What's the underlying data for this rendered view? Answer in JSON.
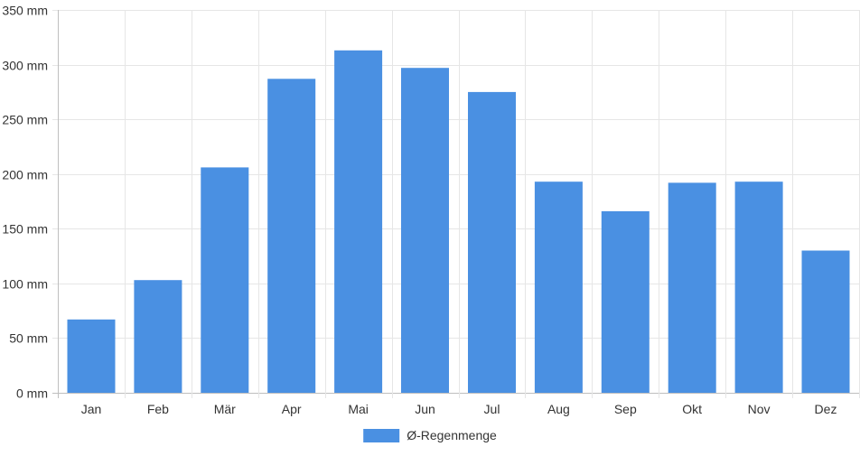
{
  "chart_data": {
    "type": "bar",
    "categories": [
      "Jan",
      "Feb",
      "Mär",
      "Apr",
      "Mai",
      "Jun",
      "Jul",
      "Aug",
      "Sep",
      "Okt",
      "Nov",
      "Dez"
    ],
    "series": [
      {
        "name": "Ø-Regenmenge",
        "values": [
          67,
          103,
          206,
          287,
          313,
          297,
          275,
          193,
          166,
          192,
          193,
          130
        ],
        "color": "#4a90e2"
      }
    ],
    "y_unit": "mm",
    "ylim": [
      0,
      350
    ],
    "y_ticks": [
      0,
      50,
      100,
      150,
      200,
      250,
      300,
      350
    ],
    "y_tick_labels": [
      "0 mm",
      "50 mm",
      "100 mm",
      "150 mm",
      "200 mm",
      "250 mm",
      "300 mm",
      "350 mm"
    ],
    "grid": true,
    "legend_position": "bottom-center"
  }
}
